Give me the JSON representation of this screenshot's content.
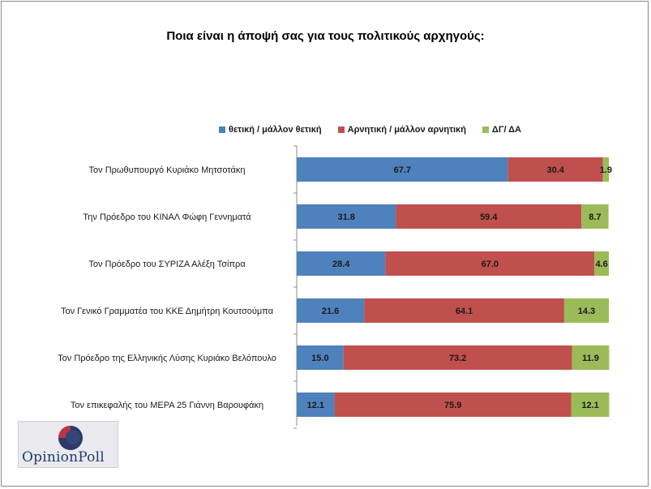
{
  "chart_data": {
    "type": "bar",
    "stacked": true,
    "orientation": "horizontal",
    "title": "Ποια είναι η άποψή σας για τους πολιτικούς αρχηγούς:",
    "categories": [
      "Τον Πρωθυπουργό Κυριάκο Μητσοτάκη",
      "Την Πρόεδρο του ΚΙΝΑΛ Φώφη Γεννηματά",
      "Τον Πρόεδρο του ΣΥΡΙΖΑ Αλέξη Τσίπρα",
      "Τον Γενικό Γραμματέα του ΚΚΕ Δημήτρη Κουτσούμπα",
      "Τον Πρόεδρο της Ελληνικής Λύσης Κυριάκο Βελόπουλο",
      "Τον επικεφαλής του ΜΕΡΑ 25 Γιάννη Βαρουφάκη"
    ],
    "series": [
      {
        "name": "θετική / μάλλον θετική",
        "color": "#4f81bd",
        "values": [
          67.7,
          31.8,
          28.4,
          21.6,
          15.0,
          12.1
        ]
      },
      {
        "name": "Αρνητική  / μάλλον αρνητική",
        "color": "#c0504d",
        "values": [
          30.4,
          59.4,
          67.0,
          64.1,
          73.2,
          75.9
        ]
      },
      {
        "name": "ΔΓ/ ΔΑ",
        "color": "#9bbb59",
        "values": [
          1.9,
          8.7,
          4.6,
          14.3,
          11.9,
          12.1
        ]
      }
    ],
    "value_labels": [
      [
        "67.7",
        "30.4",
        "1.9"
      ],
      [
        "31.8",
        "59.4",
        "8.7"
      ],
      [
        "28.4",
        "67.0",
        "4.6"
      ],
      [
        "21.6",
        "64.1",
        "14.3"
      ],
      [
        "15.0",
        "73.2",
        "11.9"
      ],
      [
        "12.1",
        "75.9",
        "12.1"
      ]
    ],
    "xlim": [
      0,
      100
    ],
    "grid": false,
    "legend_position": "top"
  },
  "logo": {
    "text": "OpinionPoll"
  }
}
